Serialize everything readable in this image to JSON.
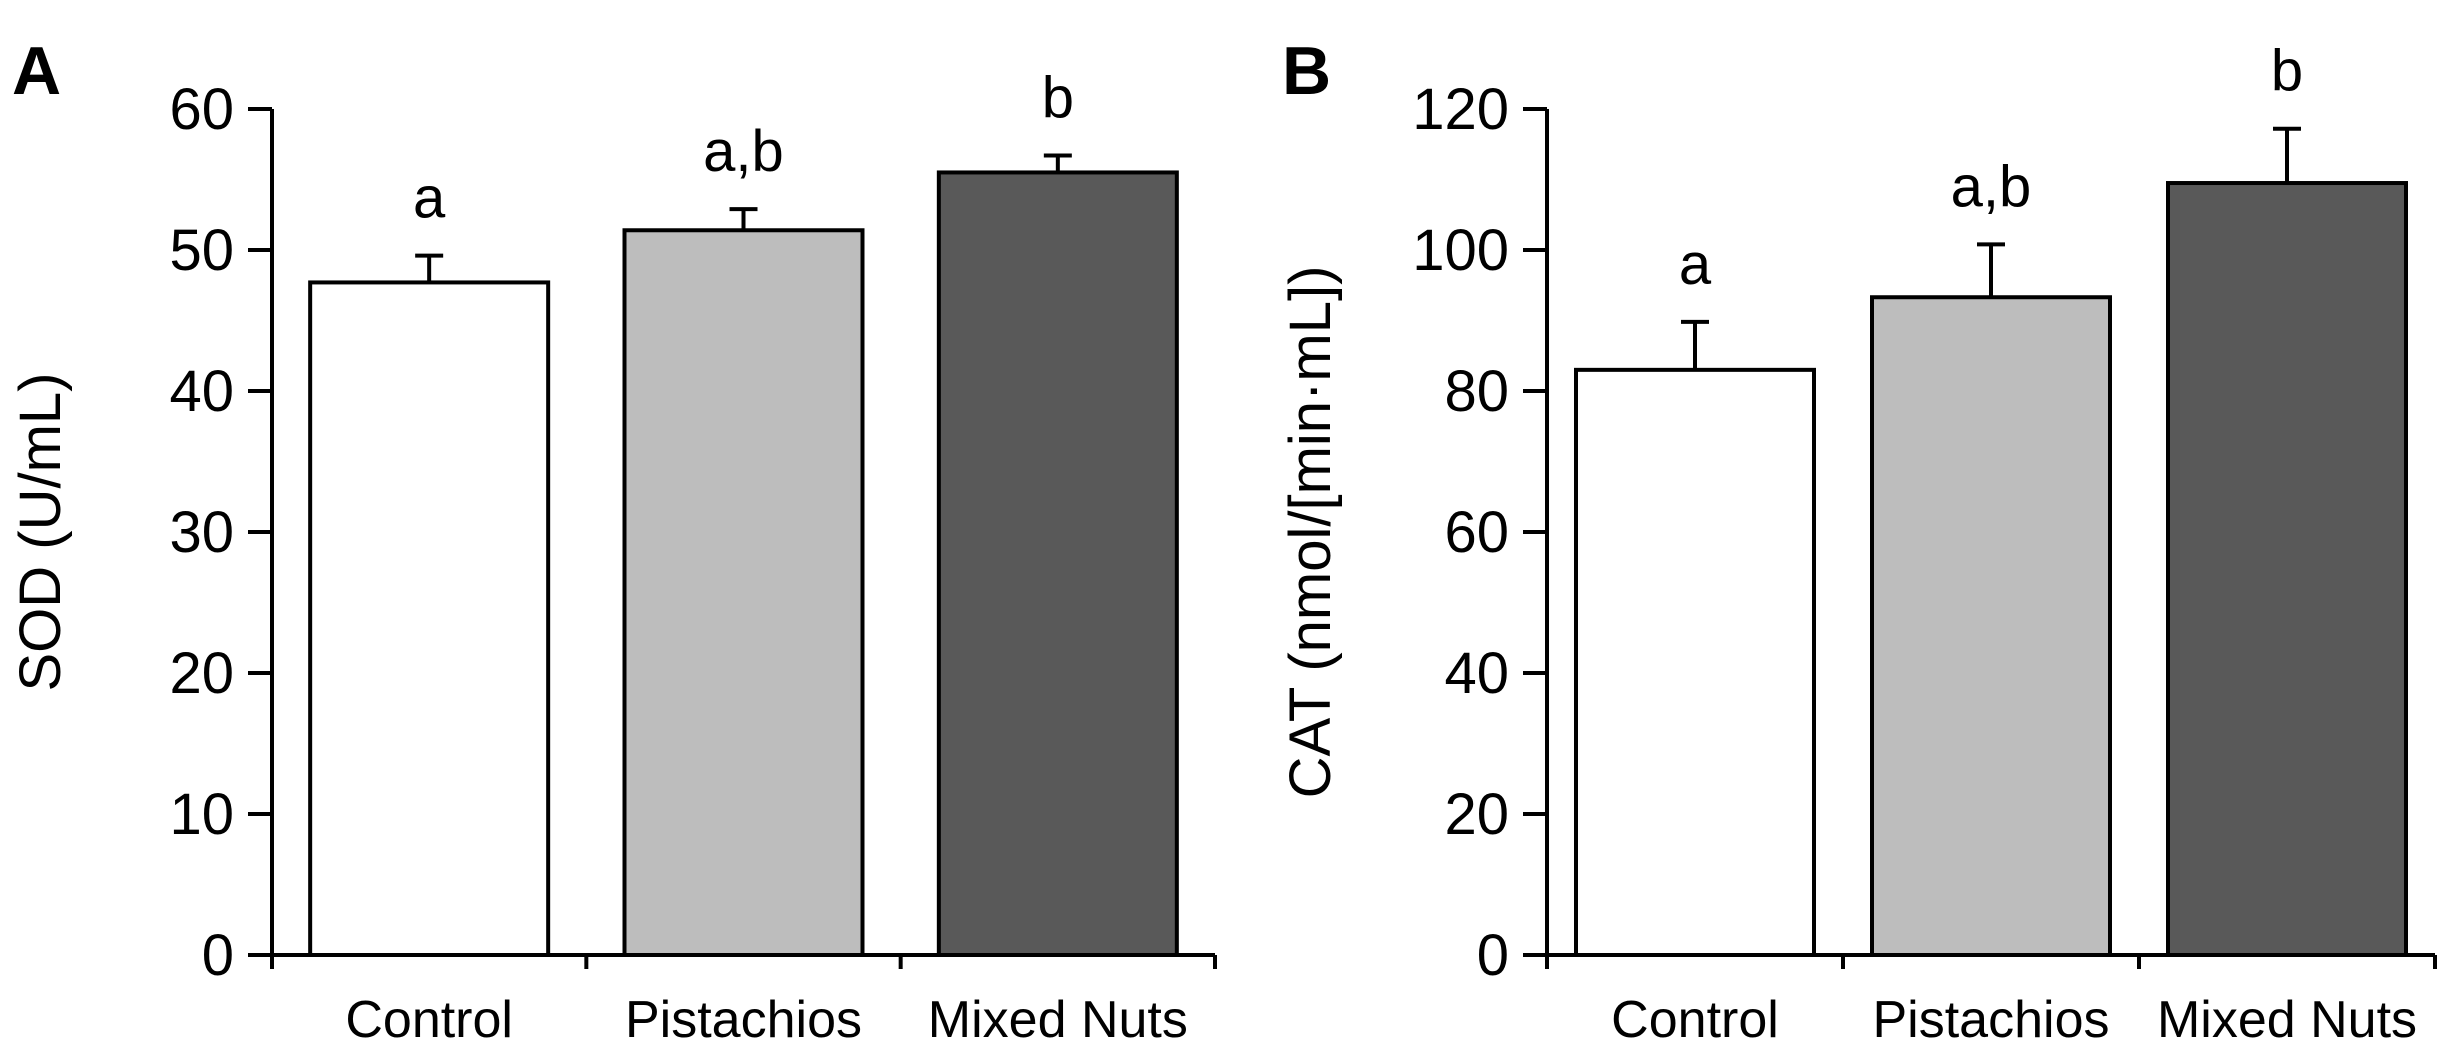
{
  "chart_data": [
    {
      "panel": "A",
      "type": "bar",
      "categories": [
        "Control",
        "Pistachios",
        "Mixed Nuts"
      ],
      "values": [
        47.7,
        51.4,
        55.5
      ],
      "errors": [
        1.9,
        1.5,
        1.2
      ],
      "significance": [
        "a",
        "a,b",
        "b"
      ],
      "bar_colors": [
        "#ffffff",
        "#bdbdbd",
        "#595959"
      ],
      "title": "",
      "xlabel": "",
      "ylabel": "SOD (U/mL)",
      "ylim": [
        0,
        60
      ],
      "yticks": [
        0,
        10,
        20,
        30,
        40,
        50,
        60
      ],
      "grid": false
    },
    {
      "panel": "B",
      "type": "bar",
      "categories": [
        "Control",
        "Pistachios",
        "Mixed Nuts"
      ],
      "values": [
        83,
        93.3,
        109.5
      ],
      "errors": [
        6.8,
        7.5,
        7.7
      ],
      "significance": [
        "a",
        "a,b",
        "b"
      ],
      "bar_colors": [
        "#ffffff",
        "#bdbdbd",
        "#595959"
      ],
      "title": "",
      "xlabel": "",
      "ylabel": "CAT (nmol/[min·mL])",
      "ylim": [
        0,
        120
      ],
      "yticks": [
        0,
        20,
        40,
        60,
        80,
        100,
        120
      ],
      "grid": false
    }
  ],
  "colors": {
    "axis": "#000000",
    "background": "#ffffff"
  }
}
